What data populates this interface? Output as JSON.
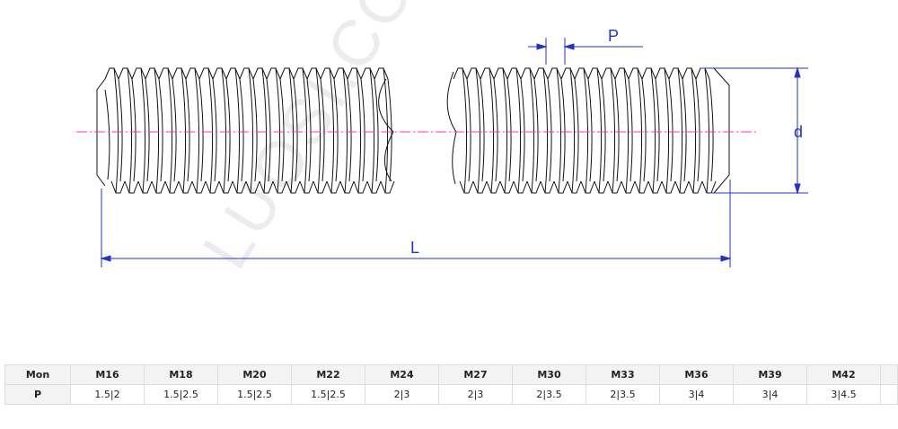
{
  "watermark": "LUOSI.COM",
  "dimensions": {
    "pitch": "P",
    "diameter": "d",
    "length": "L"
  },
  "colors": {
    "dimension": "#2233cc",
    "axis": "#ff33cc",
    "outline": "#111111"
  },
  "table": {
    "header_label": "Mon",
    "row_label": "P",
    "sizes": [
      "M16",
      "M18",
      "M20",
      "M22",
      "M24",
      "M27",
      "M30",
      "M33",
      "M36",
      "M39",
      "M42"
    ],
    "pitches": [
      "1.5|2",
      "1.5|2.5",
      "1.5|2.5",
      "1.5|2.5",
      "2|3",
      "2|3",
      "2|3.5",
      "2|3.5",
      "3|4",
      "3|4",
      "3|4.5"
    ]
  }
}
